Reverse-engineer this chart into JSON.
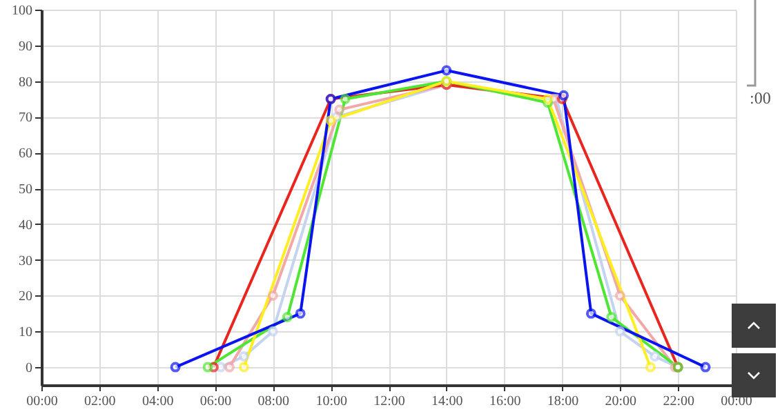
{
  "chart_data": {
    "type": "line",
    "series": [
      {
        "color": "#c3d3f0",
        "x": [
          6.2,
          7,
          8,
          10.2,
          14,
          17.8,
          20,
          21.2,
          22
        ],
        "values": [
          0,
          3,
          10,
          70,
          79,
          75,
          10,
          3,
          0
        ]
      },
      {
        "color": "#f2a8a8",
        "x": [
          6.5,
          8,
          10.3,
          14,
          17.7,
          20,
          21.9
        ],
        "values": [
          0,
          20,
          72,
          79,
          75,
          20,
          0
        ]
      },
      {
        "color": "#e8251e",
        "x": [
          5.95,
          10,
          14,
          18,
          22
        ],
        "values": [
          0,
          75,
          79,
          75,
          0
        ]
      },
      {
        "color": "#4ee633",
        "x": [
          5.75,
          8.5,
          10.5,
          14,
          17.5,
          19.7,
          22
        ],
        "values": [
          0,
          14,
          75,
          80,
          74,
          14,
          0
        ]
      },
      {
        "color": "#ffee22",
        "x": [
          7,
          10,
          14,
          17.5,
          21.05
        ],
        "values": [
          0,
          69,
          80,
          75,
          0
        ]
      },
      {
        "color": "#0a14f0",
        "x": [
          4.63,
          8.95,
          10,
          14,
          18.05,
          19,
          22.95
        ],
        "values": [
          0,
          15,
          75,
          83,
          76,
          15,
          0
        ]
      }
    ],
    "xlim": [
      0,
      24
    ],
    "xticks": [
      {
        "value": 0,
        "label": "00:00"
      },
      {
        "value": 2,
        "label": "02:00"
      },
      {
        "value": 4,
        "label": "04:00"
      },
      {
        "value": 6,
        "label": "06:00"
      },
      {
        "value": 8,
        "label": "08:00"
      },
      {
        "value": 10,
        "label": "10:00"
      },
      {
        "value": 12,
        "label": "12:00"
      },
      {
        "value": 14,
        "label": "14:00"
      },
      {
        "value": 16,
        "label": "16:00"
      },
      {
        "value": 18,
        "label": "18:00"
      },
      {
        "value": 20,
        "label": "20:00"
      },
      {
        "value": 22,
        "label": "22:00"
      },
      {
        "value": 24,
        "label": "00:00"
      }
    ],
    "ylim": [
      -5,
      100
    ],
    "yticks": [
      0,
      10,
      20,
      30,
      40,
      50,
      60,
      70,
      80,
      90,
      100
    ],
    "grid": true,
    "marker": "circle",
    "line_style": "solid",
    "annotations": [
      ":00"
    ]
  }
}
